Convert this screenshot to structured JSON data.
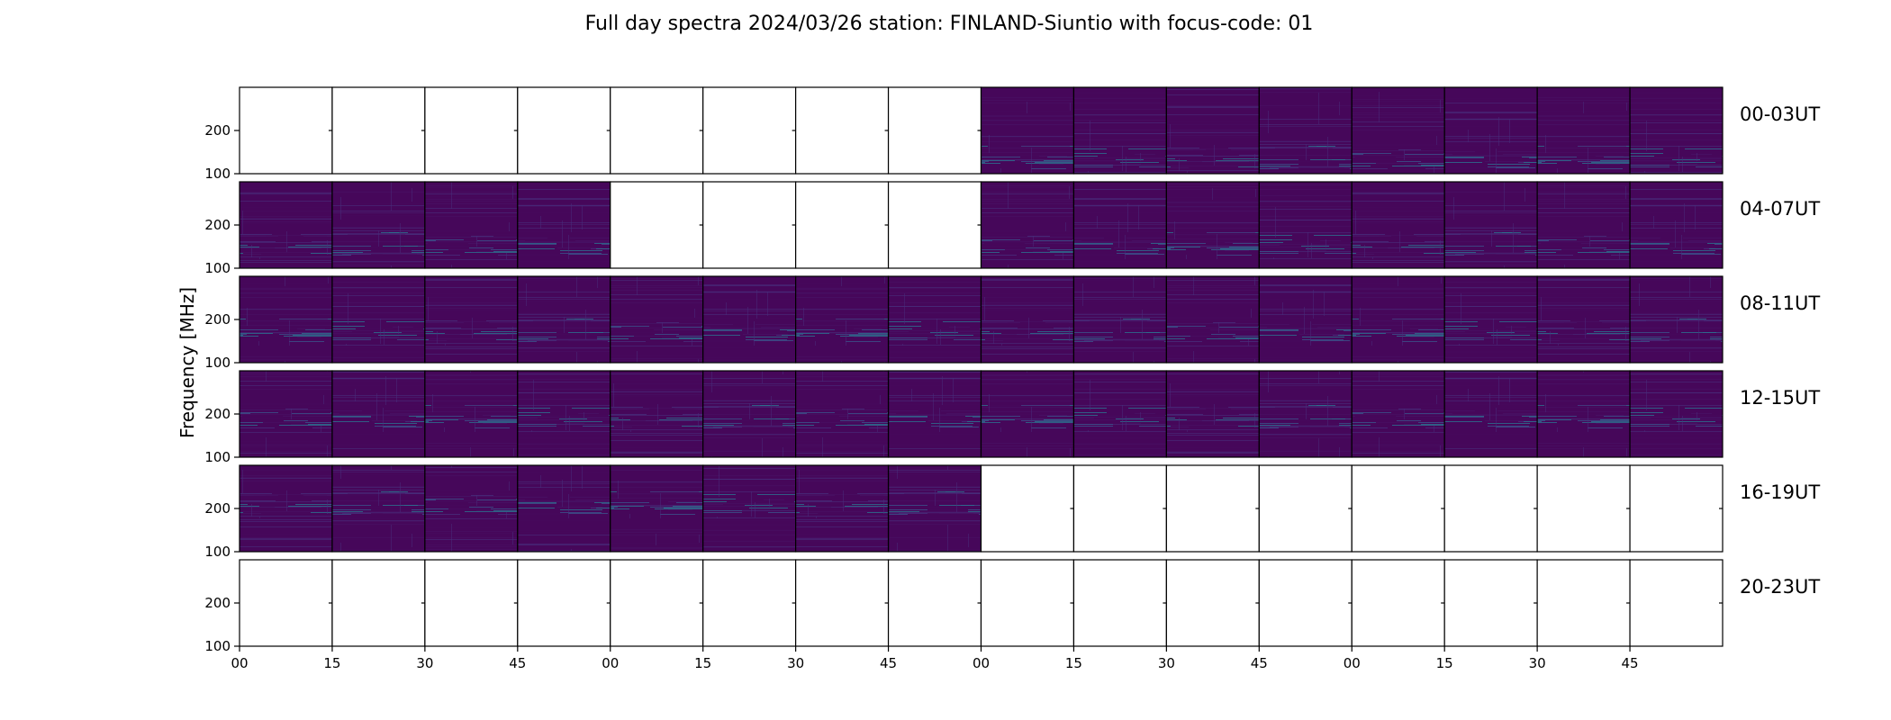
{
  "chart_data": {
    "type": "heatmap",
    "title": "Full day spectra 2024/03/26 station: FINLAND-Siuntio with focus-code: 01",
    "ylabel": "Frequency [MHz]",
    "xlabel": "",
    "ylim": [
      100,
      300
    ],
    "y_ticks": [
      "100",
      "200"
    ],
    "x_ticks": [
      "00",
      "15",
      "30",
      "45",
      "00",
      "15",
      "30",
      "45",
      "00",
      "15",
      "30",
      "45",
      "00",
      "15",
      "30",
      "45"
    ],
    "colormap": "viridis",
    "minutes_per_panel": 15,
    "rows": [
      {
        "label": "00-03UT",
        "panels_with_data": [
          0,
          0,
          0,
          0,
          0,
          0,
          0,
          0,
          1,
          1,
          1,
          1,
          1,
          1,
          1,
          1
        ]
      },
      {
        "label": "04-07UT",
        "panels_with_data": [
          1,
          1,
          1,
          1,
          0,
          0,
          0,
          0,
          1,
          1,
          1,
          1,
          1,
          1,
          1,
          1
        ]
      },
      {
        "label": "08-11UT",
        "panels_with_data": [
          1,
          1,
          1,
          1,
          1,
          1,
          1,
          1,
          1,
          1,
          1,
          1,
          1,
          1,
          1,
          1
        ]
      },
      {
        "label": "12-15UT",
        "panels_with_data": [
          1,
          1,
          1,
          1,
          1,
          1,
          1,
          1,
          1,
          1,
          1,
          1,
          1,
          1,
          1,
          1
        ]
      },
      {
        "label": "16-19UT",
        "panels_with_data": [
          1,
          1,
          1,
          1,
          1,
          1,
          1,
          1,
          0,
          0,
          0,
          0,
          0,
          0,
          0,
          0
        ]
      },
      {
        "label": "20-23UT",
        "panels_with_data": [
          0,
          0,
          0,
          0,
          0,
          0,
          0,
          0,
          0,
          0,
          0,
          0,
          0,
          0,
          0,
          0
        ]
      }
    ]
  }
}
